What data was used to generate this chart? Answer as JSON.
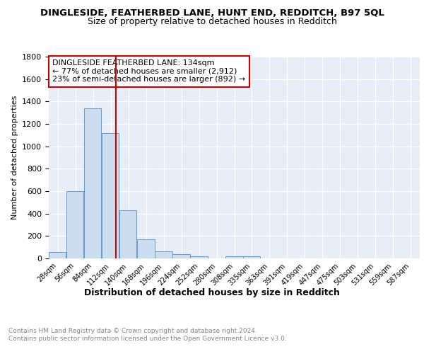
{
  "title": "DINGLESIDE, FEATHERBED LANE, HUNT END, REDDITCH, B97 5QL",
  "subtitle": "Size of property relative to detached houses in Redditch",
  "xlabel": "Distribution of detached houses by size in Redditch",
  "ylabel": "Number of detached properties",
  "footer_line1": "Contains HM Land Registry data © Crown copyright and database right 2024.",
  "footer_line2": "Contains public sector information licensed under the Open Government Licence v3.0.",
  "bin_labels": [
    "28sqm",
    "56sqm",
    "84sqm",
    "112sqm",
    "140sqm",
    "168sqm",
    "196sqm",
    "224sqm",
    "252sqm",
    "280sqm",
    "308sqm",
    "335sqm",
    "363sqm",
    "391sqm",
    "419sqm",
    "447sqm",
    "475sqm",
    "503sqm",
    "531sqm",
    "559sqm",
    "587sqm"
  ],
  "bar_heights": [
    57,
    600,
    1340,
    1120,
    430,
    170,
    65,
    40,
    17,
    0,
    17,
    17,
    0,
    0,
    0,
    0,
    0,
    0,
    0,
    0,
    0
  ],
  "bin_edges": [
    28,
    56,
    84,
    112,
    140,
    168,
    196,
    224,
    252,
    280,
    308,
    335,
    363,
    391,
    419,
    447,
    475,
    503,
    531,
    559,
    587
  ],
  "bar_color": "#ccddf0",
  "bar_edge_color": "#6699cc",
  "vline_x": 134,
  "vline_color": "#cc0000",
  "annotation_title": "DINGLESIDE FEATHERBED LANE: 134sqm",
  "annotation_line1": "← 77% of detached houses are smaller (2,912)",
  "annotation_line2": "23% of semi-detached houses are larger (892) →",
  "annotation_box_color": "#ffffff",
  "annotation_box_edge": "#cc0000",
  "ylim": [
    0,
    1800
  ],
  "yticks": [
    0,
    200,
    400,
    600,
    800,
    1000,
    1200,
    1400,
    1600,
    1800
  ],
  "background_color": "#e8eef7",
  "fig_background": "#ffffff"
}
